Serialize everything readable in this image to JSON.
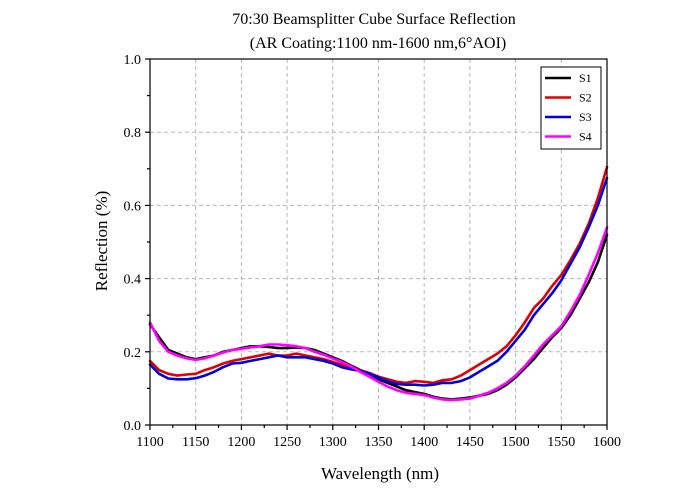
{
  "chart_data": {
    "type": "line",
    "title": "70:30 Beamsplitter Cube Surface Reflection",
    "subtitle": "(AR Coating:1100 nm-1600 nm,6°AOI)",
    "xlabel": "Wavelength (nm)",
    "ylabel": "Reflection (%)",
    "xlim": [
      1100,
      1600
    ],
    "ylim": [
      0.0,
      1.0
    ],
    "xticks": [
      1100,
      1150,
      1200,
      1250,
      1300,
      1350,
      1400,
      1450,
      1500,
      1550,
      1600
    ],
    "xtick_labels": [
      "1100",
      "1150",
      "1200",
      "1250",
      "1300",
      "1350",
      "1400",
      "1450",
      "1500",
      "1550",
      "1600"
    ],
    "yticks": [
      0.0,
      0.2,
      0.4,
      0.6,
      0.8,
      1.0
    ],
    "ytick_labels": [
      "0.0",
      "0.2",
      "0.4",
      "0.6",
      "0.8",
      "1.0"
    ],
    "grid": true,
    "legend_position": "top-right",
    "x": [
      1100,
      1110,
      1120,
      1130,
      1140,
      1150,
      1160,
      1170,
      1180,
      1190,
      1200,
      1210,
      1220,
      1230,
      1240,
      1250,
      1260,
      1270,
      1280,
      1290,
      1300,
      1310,
      1320,
      1330,
      1340,
      1350,
      1360,
      1370,
      1380,
      1390,
      1400,
      1410,
      1420,
      1430,
      1440,
      1450,
      1460,
      1470,
      1480,
      1490,
      1500,
      1510,
      1520,
      1530,
      1540,
      1550,
      1560,
      1570,
      1580,
      1590,
      1600
    ],
    "series": [
      {
        "name": "S1",
        "color": "#000000",
        "values": [
          0.275,
          0.24,
          0.205,
          0.195,
          0.185,
          0.18,
          0.185,
          0.19,
          0.2,
          0.205,
          0.21,
          0.215,
          0.215,
          0.213,
          0.21,
          0.21,
          0.212,
          0.21,
          0.205,
          0.195,
          0.185,
          0.175,
          0.162,
          0.15,
          0.14,
          0.125,
          0.115,
          0.105,
          0.095,
          0.09,
          0.085,
          0.077,
          0.072,
          0.07,
          0.072,
          0.075,
          0.08,
          0.085,
          0.095,
          0.11,
          0.13,
          0.155,
          0.18,
          0.21,
          0.24,
          0.265,
          0.3,
          0.345,
          0.39,
          0.445,
          0.52
        ]
      },
      {
        "name": "S2",
        "color": "#e00000",
        "values": [
          0.175,
          0.15,
          0.14,
          0.135,
          0.138,
          0.14,
          0.15,
          0.158,
          0.168,
          0.175,
          0.18,
          0.185,
          0.19,
          0.195,
          0.19,
          0.19,
          0.195,
          0.19,
          0.185,
          0.18,
          0.172,
          0.165,
          0.155,
          0.15,
          0.142,
          0.132,
          0.125,
          0.118,
          0.115,
          0.12,
          0.118,
          0.115,
          0.122,
          0.125,
          0.135,
          0.15,
          0.165,
          0.18,
          0.195,
          0.215,
          0.245,
          0.28,
          0.32,
          0.345,
          0.38,
          0.41,
          0.45,
          0.495,
          0.55,
          0.62,
          0.705
        ]
      },
      {
        "name": "S3",
        "color": "#0000e0",
        "values": [
          0.165,
          0.14,
          0.127,
          0.125,
          0.125,
          0.128,
          0.135,
          0.145,
          0.158,
          0.168,
          0.17,
          0.175,
          0.18,
          0.185,
          0.19,
          0.185,
          0.185,
          0.185,
          0.18,
          0.175,
          0.168,
          0.158,
          0.152,
          0.148,
          0.14,
          0.13,
          0.12,
          0.112,
          0.11,
          0.11,
          0.108,
          0.11,
          0.115,
          0.115,
          0.12,
          0.13,
          0.145,
          0.16,
          0.175,
          0.2,
          0.23,
          0.26,
          0.3,
          0.33,
          0.36,
          0.395,
          0.44,
          0.485,
          0.54,
          0.6,
          0.675
        ]
      },
      {
        "name": "S4",
        "color": "#ff00ff",
        "values": [
          0.28,
          0.23,
          0.2,
          0.19,
          0.182,
          0.178,
          0.182,
          0.19,
          0.198,
          0.205,
          0.208,
          0.212,
          0.215,
          0.22,
          0.22,
          0.218,
          0.215,
          0.21,
          0.2,
          0.192,
          0.182,
          0.172,
          0.16,
          0.145,
          0.132,
          0.118,
          0.105,
          0.095,
          0.088,
          0.085,
          0.082,
          0.075,
          0.07,
          0.068,
          0.07,
          0.072,
          0.08,
          0.088,
          0.1,
          0.115,
          0.135,
          0.16,
          0.19,
          0.22,
          0.245,
          0.27,
          0.31,
          0.355,
          0.41,
          0.47,
          0.54
        ]
      }
    ]
  }
}
